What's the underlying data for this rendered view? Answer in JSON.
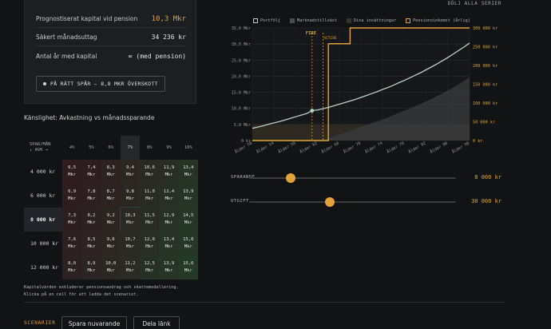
{
  "summary": {
    "capital_label": "Prognostiserat kapital vid pension",
    "capital_value": "10,3 Mkr",
    "withdrawal_label": "Säkert månadsuttag",
    "withdrawal_value": "34 236 kr",
    "years_label": "Antal år med kapital",
    "years_value": "∞ (med pension)",
    "track_button": "PÅ RÄTT SPÅR – 8,8 MKR ÖVERSKOTT"
  },
  "sensitivity": {
    "title": "Känslighet: Avkastning vs månadssparande",
    "corner": [
      "SPAR/MÅN",
      "↓ AVK →"
    ],
    "columns": [
      "4%",
      "5%",
      "6%",
      "7%",
      "8%",
      "9%",
      "10%"
    ],
    "highlight_column": 3,
    "highlight_row": 2,
    "unit": "Mkr",
    "rows": [
      {
        "label": "4 000 kr",
        "values": [
          "6,5",
          "7,4",
          "8,3",
          "9,4",
          "10,6",
          "11,9",
          "13,4"
        ]
      },
      {
        "label": "6 000 kr",
        "values": [
          "6,9",
          "7,8",
          "8,7",
          "9,8",
          "11,0",
          "12,4",
          "13,9"
        ]
      },
      {
        "label": "8 000 kr",
        "values": [
          "7,3",
          "8,2",
          "9,2",
          "10,3",
          "11,5",
          "12,9",
          "14,5"
        ]
      },
      {
        "label": "10 000 kr",
        "values": [
          "7,6",
          "8,5",
          "9,6",
          "10,7",
          "12,0",
          "13,4",
          "15,0"
        ]
      },
      {
        "label": "12 000 kr",
        "values": [
          "8,0",
          "8,9",
          "10,0",
          "11,2",
          "12,5",
          "13,9",
          "15,6"
        ]
      }
    ],
    "note_line1": "Kapitalvärden exkluderar pensionsavdrag och skattemodellering.",
    "note_line2": "Klicka på en cell för att ladda det scenariot."
  },
  "toggle_all": "DÖLJ ALLA SERIER",
  "legend": [
    {
      "label": "Portfölj",
      "color": "#b9d4c6",
      "icon": "checkbox-checked-icon"
    },
    {
      "label": "Marknadstillväxt",
      "color": "#4a4d50",
      "icon": "checkbox-icon"
    },
    {
      "label": "Dina insättningar",
      "color": "#3a3325",
      "icon": "checkbox-icon"
    },
    {
      "label": "Pensionsinkomst (årlig)",
      "color": "#e3a33a",
      "icon": "checkbox-checked-icon"
    }
  ],
  "chart_data": {
    "type": "line",
    "x": [
      50,
      51,
      52,
      53,
      54,
      55,
      56,
      57,
      58,
      59,
      60,
      61,
      62,
      63,
      64,
      65,
      66,
      67,
      68,
      69,
      70,
      71,
      72,
      73,
      74,
      75,
      76,
      77,
      78,
      79,
      80,
      81,
      82,
      83,
      84,
      85,
      86,
      87,
      88,
      89,
      90
    ],
    "x_tick_labels": [
      "Ålder 50",
      "Ålder 54",
      "Ålder 58",
      "Ålder 62",
      "Ålder 66",
      "Ålder 70",
      "Ålder 74",
      "Ålder 78",
      "Ålder 82",
      "Ålder 86",
      "Ålder 90"
    ],
    "y_left_ticks": [
      "0 kr",
      "5,0 Mkr",
      "10,0 Mkr",
      "15,0 Mkr",
      "20,0 Mkr",
      "25,0 Mkr",
      "30,0 Mkr",
      "35,0 Mkr"
    ],
    "y_left_lim": [
      0,
      35
    ],
    "y_right_ticks": [
      "0 kr",
      "50 000 kr",
      "100 000 kr",
      "150 000 kr",
      "200 000 kr",
      "250 000 kr",
      "300 000 kr"
    ],
    "y_right_lim": [
      0,
      300000
    ],
    "markers": [
      {
        "label": "FIRE",
        "x": 61
      },
      {
        "label": "ACTIVE",
        "x": 63
      }
    ],
    "grid": true,
    "series": [
      {
        "name": "Portfölj",
        "axis": "left",
        "values": [
          3.8,
          4.2,
          4.6,
          5.1,
          5.5,
          5.9,
          6.4,
          6.9,
          7.4,
          7.9,
          8.4,
          9.3,
          9.5,
          9.9,
          10.3,
          10.8,
          11.3,
          11.8,
          12.3,
          12.8,
          13.4,
          14.0,
          14.6,
          15.2,
          15.9,
          16.5,
          17.2,
          18.0,
          18.7,
          19.5,
          20.3,
          21.1,
          22.0,
          22.9,
          23.8,
          24.8,
          25.8,
          26.9,
          28.0,
          29.1,
          30.3
        ]
      },
      {
        "name": "Marknadstillväxt",
        "axis": "left",
        "values": [
          0,
          0,
          0,
          0,
          0,
          0,
          0,
          0,
          0,
          0,
          0,
          0,
          0,
          0,
          0.6,
          1.2,
          1.8,
          2.4,
          3.0,
          3.6,
          4.2,
          4.8,
          5.4,
          6.0,
          6.6,
          7.2,
          7.9,
          8.6,
          9.3,
          10.0,
          10.7,
          11.4,
          12.2,
          13.0,
          13.8,
          14.7,
          15.6,
          16.5,
          17.5,
          18.6,
          19.7
        ]
      },
      {
        "name": "Dina insättningar",
        "axis": "left",
        "values": [
          5.1,
          5.1,
          5.1,
          5.1,
          5.1,
          5.1,
          5.1,
          5.1,
          5.1,
          5.1,
          5.1,
          5.1,
          5.1,
          5.1,
          5.1,
          5.1,
          5.1,
          5.1,
          5.1,
          5.1,
          5.1,
          5.1,
          5.1,
          5.1,
          5.1,
          5.1,
          5.1,
          5.1,
          5.1,
          5.1,
          5.1,
          5.1,
          5.1,
          5.1,
          5.1,
          5.1,
          5.1,
          5.1,
          5.1,
          5.1,
          5.1
        ]
      },
      {
        "name": "Pensionsinkomst (årlig)",
        "axis": "right",
        "values": [
          0,
          0,
          0,
          0,
          0,
          0,
          0,
          0,
          0,
          0,
          0,
          0,
          0,
          0,
          258000,
          258000,
          258000,
          258000,
          300000,
          300000,
          300000,
          300000,
          300000,
          300000,
          300000,
          300000,
          300000,
          300000,
          300000,
          300000,
          300000,
          300000,
          300000,
          300000,
          300000,
          300000,
          300000,
          300000,
          300000,
          300000,
          300000
        ]
      }
    ]
  },
  "sliders": [
    {
      "label": "SPARANDE",
      "value_text": "8 000 kr",
      "fraction": 0.2
    },
    {
      "label": "UTGIFT",
      "value_text": "30 000 kr",
      "fraction": 0.39
    }
  ],
  "footer": {
    "label": "SCENARIER",
    "save_button": "Spara nuvarande",
    "share_button": "Dela länk"
  },
  "colors": {
    "accent": "#e3a33a",
    "portfolio": "#b9d4c6",
    "background": "#111315"
  }
}
